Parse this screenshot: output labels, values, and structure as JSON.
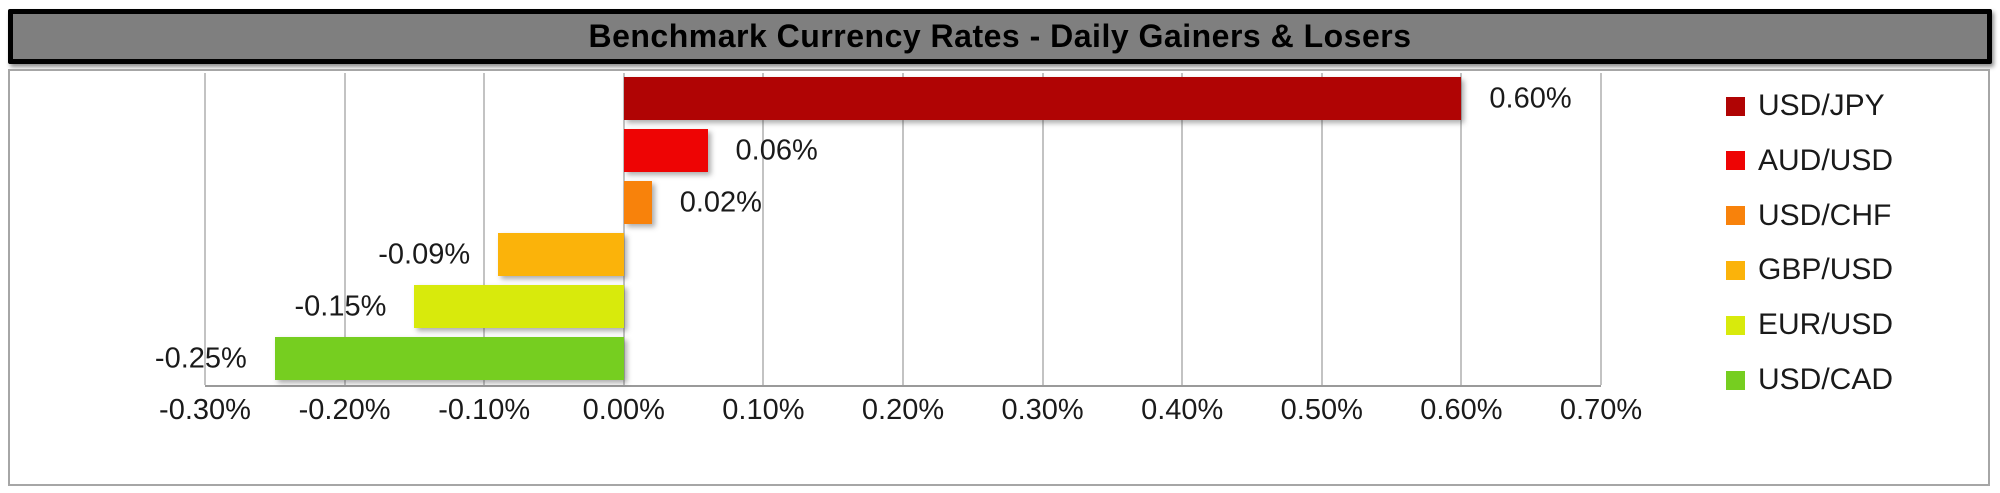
{
  "title_bar": {
    "text": "Benchmark Currency Rates - Daily Gainers & Losers"
  },
  "style": {
    "title_bg": "#7f7f7f",
    "title_text": "#000000",
    "title_border": "#000000",
    "frame_border": "#a6a6a6",
    "gridline": "#c3c3c3",
    "axis_line": "#9a9a9a",
    "label_text": "#1a1a1a"
  },
  "chart_data": {
    "type": "bar",
    "orientation": "horizontal",
    "title": "Benchmark Currency Rates - Daily Gainers & Losers",
    "categories": [
      "USD/JPY",
      "AUD/USD",
      "USD/CHF",
      "GBP/USD",
      "EUR/USD",
      "USD/CAD"
    ],
    "values": [
      0.6,
      0.06,
      0.02,
      -0.09,
      -0.15,
      -0.25
    ],
    "data_labels": [
      "0.60%",
      "0.06%",
      "0.02%",
      "-0.09%",
      "-0.15%",
      "-0.25%"
    ],
    "bar_colors": [
      "#b00404",
      "#ee0404",
      "#f8820b",
      "#fbb30a",
      "#d8ea0c",
      "#76ce20"
    ],
    "xlim": [
      -0.3,
      0.7
    ],
    "x_ticks": [
      -0.3,
      -0.2,
      -0.1,
      0.0,
      0.1,
      0.2,
      0.3,
      0.4,
      0.5,
      0.6,
      0.7
    ],
    "x_tick_labels": [
      "-0.30%",
      "-0.20%",
      "-0.10%",
      "0.00%",
      "0.10%",
      "0.20%",
      "0.30%",
      "0.40%",
      "0.50%",
      "0.60%",
      "0.70%"
    ],
    "grid": true,
    "legend_position": "right",
    "legend": [
      {
        "label": "USD/JPY",
        "color": "#b00404"
      },
      {
        "label": "AUD/USD",
        "color": "#ee0404"
      },
      {
        "label": "USD/CHF",
        "color": "#f8820b"
      },
      {
        "label": "GBP/USD",
        "color": "#fbb30a"
      },
      {
        "label": "EUR/USD",
        "color": "#d8ea0c"
      },
      {
        "label": "USD/CAD",
        "color": "#76ce20"
      }
    ]
  }
}
